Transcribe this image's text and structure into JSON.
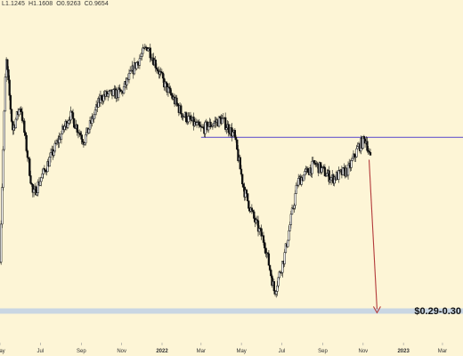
{
  "ohlc_header": {
    "low": "L1.1245",
    "high": "H1.1608",
    "open": "O0.9263",
    "close": "C0.9654"
  },
  "colors": {
    "background": "#fdf5d6",
    "candles": "#111111",
    "resistance_line": "#6a5acd",
    "support_zone": "#c9d6e3",
    "arrow": "#b33a3a"
  },
  "chart_data": {
    "type": "candlestick",
    "title": "",
    "x_ticks": [
      "May",
      "Jul",
      "Sep",
      "Nov",
      "2022",
      "Mar",
      "May",
      "Jul",
      "Sep",
      "Nov",
      "2023",
      "Mar"
    ],
    "x_range": [
      "2021-05",
      "2023-04"
    ],
    "y_scale": "log",
    "y_range": [
      0.23,
      3.1
    ],
    "grid": false,
    "support_zone_label": "$0.29-0.30",
    "support_zone": [
      0.29,
      0.3
    ],
    "resistance_level": 1.13,
    "projection_arrow": {
      "from": 0.95,
      "to": 0.29
    },
    "series_path": [
      {
        "date": "2021-05-01",
        "price": 0.45
      },
      {
        "date": "2021-05-10",
        "price": 2.1
      },
      {
        "date": "2021-05-20",
        "price": 1.2
      },
      {
        "date": "2021-06-01",
        "price": 1.45
      },
      {
        "date": "2021-06-20",
        "price": 0.72
      },
      {
        "date": "2021-07-15",
        "price": 0.95
      },
      {
        "date": "2021-08-15",
        "price": 1.35
      },
      {
        "date": "2021-09-05",
        "price": 1.1
      },
      {
        "date": "2021-10-01",
        "price": 1.55
      },
      {
        "date": "2021-11-01",
        "price": 1.6
      },
      {
        "date": "2021-11-20",
        "price": 1.95
      },
      {
        "date": "2021-12-10",
        "price": 2.3
      },
      {
        "date": "2022-01-05",
        "price": 1.7
      },
      {
        "date": "2022-02-01",
        "price": 1.35
      },
      {
        "date": "2022-03-01",
        "price": 1.2
      },
      {
        "date": "2022-04-01",
        "price": 1.3
      },
      {
        "date": "2022-04-20",
        "price": 1.15
      },
      {
        "date": "2022-05-05",
        "price": 0.75
      },
      {
        "date": "2022-05-20",
        "price": 0.6
      },
      {
        "date": "2022-06-05",
        "price": 0.5
      },
      {
        "date": "2022-06-20",
        "price": 0.34
      },
      {
        "date": "2022-07-05",
        "price": 0.45
      },
      {
        "date": "2022-07-25",
        "price": 0.8
      },
      {
        "date": "2022-08-20",
        "price": 0.92
      },
      {
        "date": "2022-09-15",
        "price": 0.82
      },
      {
        "date": "2022-10-10",
        "price": 0.88
      },
      {
        "date": "2022-10-25",
        "price": 1.05
      },
      {
        "date": "2022-11-05",
        "price": 1.12
      },
      {
        "date": "2022-11-12",
        "price": 0.95
      }
    ]
  }
}
